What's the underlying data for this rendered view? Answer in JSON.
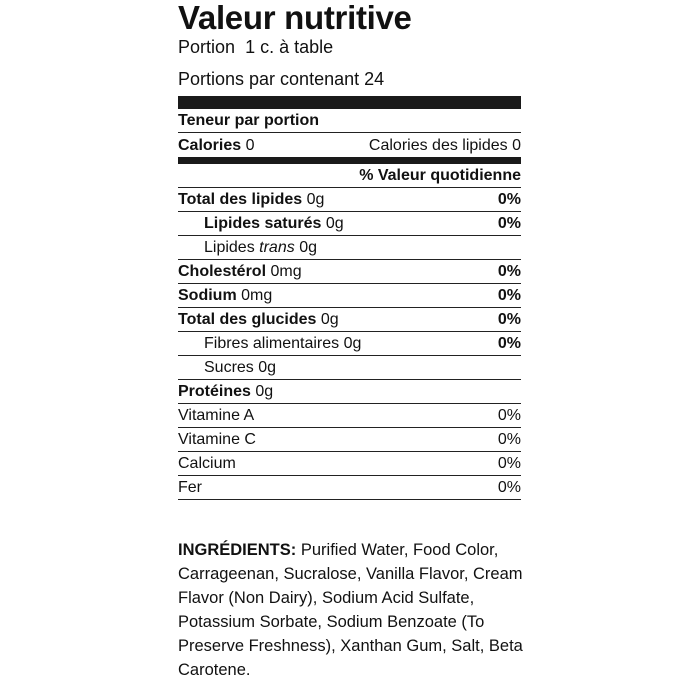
{
  "title": "Valeur nutritive",
  "serving_size_label": "Portion",
  "serving_size_value": "1 c. à table",
  "servings_per_container": "Portions par contenant 24",
  "amount_per_serving": "Teneur par portion",
  "calories": {
    "label": "Calories",
    "value": "0"
  },
  "calories_from_fat": "Calories des lipides 0",
  "daily_value_header": "% Valeur quotidienne",
  "nutrients": [
    {
      "label": "Total des lipides",
      "amount": "0g",
      "dv": "0%"
    },
    {
      "label": "Lipides saturés",
      "amount": "0g",
      "dv": "0%"
    },
    {
      "label": "Lipides",
      "label_italic": "trans",
      "amount": "0g"
    },
    {
      "label": "Cholestérol",
      "amount": "0mg",
      "dv": "0%"
    },
    {
      "label": "Sodium",
      "amount": "0mg",
      "dv": "0%"
    },
    {
      "label": "Total des glucides",
      "amount": "0g",
      "dv": "0%"
    },
    {
      "label": "Fibres alimentaires",
      "amount": "0g",
      "dv": "0%"
    },
    {
      "label": "Sucres",
      "amount": "0g"
    },
    {
      "label": "Protéines",
      "amount": "0g"
    }
  ],
  "vitamins": [
    {
      "label": "Vitamine A",
      "dv": "0%"
    },
    {
      "label": "Vitamine C",
      "dv": "0%"
    },
    {
      "label": "Calcium",
      "dv": "0%"
    },
    {
      "label": "Fer",
      "dv": "0%"
    }
  ],
  "ingredients_title": "INGRÉDIENTS:",
  "ingredients_text": "Purified Water, Food Color, Carrageenan, Sucralose, Vanilla Flavor, Cream Flavor (Non Dairy), Sodium Acid Sulfate, Potassium Sorbate, Sodium Benzoate (To Preserve Freshness), Xanthan Gum, Salt, Beta Carotene."
}
